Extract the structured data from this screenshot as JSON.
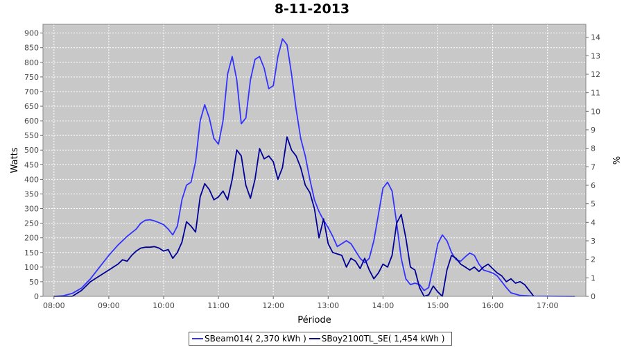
{
  "chart_data": {
    "type": "line",
    "title": "8-11-2013",
    "xlabel": "Période",
    "ylabel": "Watts",
    "ylabel_right": "%",
    "x_ticks": [
      "08:00",
      "09:00",
      "10:00",
      "11:00",
      "12:00",
      "13:00",
      "14:00",
      "15:00",
      "16:00",
      "17:00"
    ],
    "y_ticks": [
      0,
      50,
      100,
      150,
      200,
      250,
      300,
      350,
      400,
      450,
      500,
      550,
      600,
      650,
      700,
      750,
      800,
      850,
      900
    ],
    "y2_ticks": [
      0,
      1,
      2,
      3,
      4,
      5,
      6,
      7,
      8,
      9,
      10,
      11,
      12,
      13,
      14
    ],
    "ylim": [
      0,
      930
    ],
    "y2lim": [
      0,
      14.7
    ],
    "xlim": [
      "07:48",
      "17:42"
    ],
    "grid": true,
    "legend_position": "bottom",
    "colors": {
      "plot_background": "#c8c8c8",
      "grid": "#ffffff"
    },
    "series": [
      {
        "name": "SBeam014( 2,370 kWh )",
        "color": "#3232ff",
        "points": [
          [
            "08:00",
            0
          ],
          [
            "08:10",
            2
          ],
          [
            "08:20",
            10
          ],
          [
            "08:30",
            28
          ],
          [
            "08:40",
            60
          ],
          [
            "08:50",
            100
          ],
          [
            "09:00",
            140
          ],
          [
            "09:10",
            175
          ],
          [
            "09:20",
            205
          ],
          [
            "09:30",
            230
          ],
          [
            "09:35",
            250
          ],
          [
            "09:40",
            260
          ],
          [
            "09:45",
            262
          ],
          [
            "09:50",
            258
          ],
          [
            "09:55",
            252
          ],
          [
            "10:00",
            245
          ],
          [
            "10:05",
            230
          ],
          [
            "10:10",
            210
          ],
          [
            "10:15",
            240
          ],
          [
            "10:20",
            330
          ],
          [
            "10:25",
            380
          ],
          [
            "10:30",
            390
          ],
          [
            "10:35",
            460
          ],
          [
            "10:40",
            600
          ],
          [
            "10:45",
            655
          ],
          [
            "10:50",
            610
          ],
          [
            "10:55",
            540
          ],
          [
            "11:00",
            520
          ],
          [
            "11:05",
            600
          ],
          [
            "11:10",
            760
          ],
          [
            "11:15",
            820
          ],
          [
            "11:20",
            740
          ],
          [
            "11:25",
            590
          ],
          [
            "11:30",
            610
          ],
          [
            "11:35",
            740
          ],
          [
            "11:40",
            810
          ],
          [
            "11:45",
            820
          ],
          [
            "11:50",
            780
          ],
          [
            "11:55",
            710
          ],
          [
            "12:00",
            720
          ],
          [
            "12:05",
            820
          ],
          [
            "12:10",
            880
          ],
          [
            "12:15",
            860
          ],
          [
            "12:20",
            760
          ],
          [
            "12:25",
            640
          ],
          [
            "12:30",
            540
          ],
          [
            "12:35",
            480
          ],
          [
            "12:40",
            400
          ],
          [
            "12:45",
            330
          ],
          [
            "12:50",
            290
          ],
          [
            "12:55",
            260
          ],
          [
            "13:00",
            235
          ],
          [
            "13:05",
            205
          ],
          [
            "13:10",
            170
          ],
          [
            "13:15",
            180
          ],
          [
            "13:20",
            190
          ],
          [
            "13:25",
            180
          ],
          [
            "13:30",
            155
          ],
          [
            "13:35",
            130
          ],
          [
            "13:40",
            115
          ],
          [
            "13:45",
            130
          ],
          [
            "13:50",
            190
          ],
          [
            "13:55",
            280
          ],
          [
            "14:00",
            370
          ],
          [
            "14:05",
            390
          ],
          [
            "14:10",
            360
          ],
          [
            "14:15",
            250
          ],
          [
            "14:20",
            130
          ],
          [
            "14:25",
            60
          ],
          [
            "14:30",
            40
          ],
          [
            "14:35",
            45
          ],
          [
            "14:40",
            40
          ],
          [
            "14:45",
            20
          ],
          [
            "14:50",
            30
          ],
          [
            "14:55",
            100
          ],
          [
            "15:00",
            180
          ],
          [
            "15:05",
            210
          ],
          [
            "15:10",
            190
          ],
          [
            "15:15",
            150
          ],
          [
            "15:20",
            125
          ],
          [
            "15:25",
            120
          ],
          [
            "15:30",
            135
          ],
          [
            "15:35",
            148
          ],
          [
            "15:40",
            140
          ],
          [
            "15:45",
            110
          ],
          [
            "15:50",
            90
          ],
          [
            "15:55",
            85
          ],
          [
            "16:00",
            80
          ],
          [
            "16:05",
            70
          ],
          [
            "16:10",
            50
          ],
          [
            "16:15",
            30
          ],
          [
            "16:20",
            12
          ],
          [
            "16:30",
            3
          ],
          [
            "16:45",
            1
          ],
          [
            "17:30",
            0
          ]
        ]
      },
      {
        "name": "SBoy2100TL_SE( 1,454 kWh )",
        "color": "#000099",
        "points": [
          [
            "08:00",
            0
          ],
          [
            "08:10",
            0
          ],
          [
            "08:20",
            0
          ],
          [
            "08:30",
            20
          ],
          [
            "08:40",
            50
          ],
          [
            "08:50",
            70
          ],
          [
            "09:00",
            90
          ],
          [
            "09:10",
            110
          ],
          [
            "09:15",
            125
          ],
          [
            "09:20",
            120
          ],
          [
            "09:25",
            140
          ],
          [
            "09:30",
            155
          ],
          [
            "09:35",
            165
          ],
          [
            "09:40",
            168
          ],
          [
            "09:45",
            168
          ],
          [
            "09:50",
            170
          ],
          [
            "09:55",
            165
          ],
          [
            "10:00",
            155
          ],
          [
            "10:05",
            160
          ],
          [
            "10:10",
            130
          ],
          [
            "10:15",
            150
          ],
          [
            "10:20",
            185
          ],
          [
            "10:25",
            255
          ],
          [
            "10:30",
            240
          ],
          [
            "10:35",
            220
          ],
          [
            "10:40",
            340
          ],
          [
            "10:45",
            385
          ],
          [
            "10:50",
            365
          ],
          [
            "10:55",
            330
          ],
          [
            "11:00",
            340
          ],
          [
            "11:05",
            360
          ],
          [
            "11:10",
            330
          ],
          [
            "11:15",
            400
          ],
          [
            "11:20",
            500
          ],
          [
            "11:25",
            480
          ],
          [
            "11:30",
            380
          ],
          [
            "11:35",
            335
          ],
          [
            "11:40",
            400
          ],
          [
            "11:45",
            505
          ],
          [
            "11:50",
            470
          ],
          [
            "11:55",
            480
          ],
          [
            "12:00",
            460
          ],
          [
            "12:05",
            400
          ],
          [
            "12:10",
            440
          ],
          [
            "12:15",
            545
          ],
          [
            "12:20",
            500
          ],
          [
            "12:25",
            480
          ],
          [
            "12:30",
            440
          ],
          [
            "12:35",
            380
          ],
          [
            "12:40",
            355
          ],
          [
            "12:45",
            300
          ],
          [
            "12:50",
            200
          ],
          [
            "12:55",
            265
          ],
          [
            "13:00",
            180
          ],
          [
            "13:05",
            150
          ],
          [
            "13:10",
            145
          ],
          [
            "13:15",
            140
          ],
          [
            "13:20",
            100
          ],
          [
            "13:25",
            130
          ],
          [
            "13:30",
            120
          ],
          [
            "13:35",
            95
          ],
          [
            "13:40",
            130
          ],
          [
            "13:45",
            90
          ],
          [
            "13:50",
            60
          ],
          [
            "13:55",
            80
          ],
          [
            "14:00",
            110
          ],
          [
            "14:05",
            100
          ],
          [
            "14:10",
            140
          ],
          [
            "14:15",
            250
          ],
          [
            "14:20",
            280
          ],
          [
            "14:25",
            200
          ],
          [
            "14:30",
            100
          ],
          [
            "14:35",
            90
          ],
          [
            "14:40",
            30
          ],
          [
            "14:45",
            0
          ],
          [
            "14:50",
            5
          ],
          [
            "14:55",
            35
          ],
          [
            "15:00",
            15
          ],
          [
            "15:05",
            0
          ],
          [
            "15:10",
            90
          ],
          [
            "15:15",
            140
          ],
          [
            "15:20",
            130
          ],
          [
            "15:25",
            110
          ],
          [
            "15:30",
            100
          ],
          [
            "15:35",
            90
          ],
          [
            "15:40",
            100
          ],
          [
            "15:45",
            85
          ],
          [
            "15:50",
            100
          ],
          [
            "15:55",
            110
          ],
          [
            "16:00",
            95
          ],
          [
            "16:05",
            80
          ],
          [
            "16:10",
            70
          ],
          [
            "16:15",
            50
          ],
          [
            "16:20",
            60
          ],
          [
            "16:25",
            45
          ],
          [
            "16:30",
            50
          ],
          [
            "16:35",
            40
          ],
          [
            "16:40",
            20
          ],
          [
            "16:45",
            0
          ]
        ]
      }
    ]
  }
}
